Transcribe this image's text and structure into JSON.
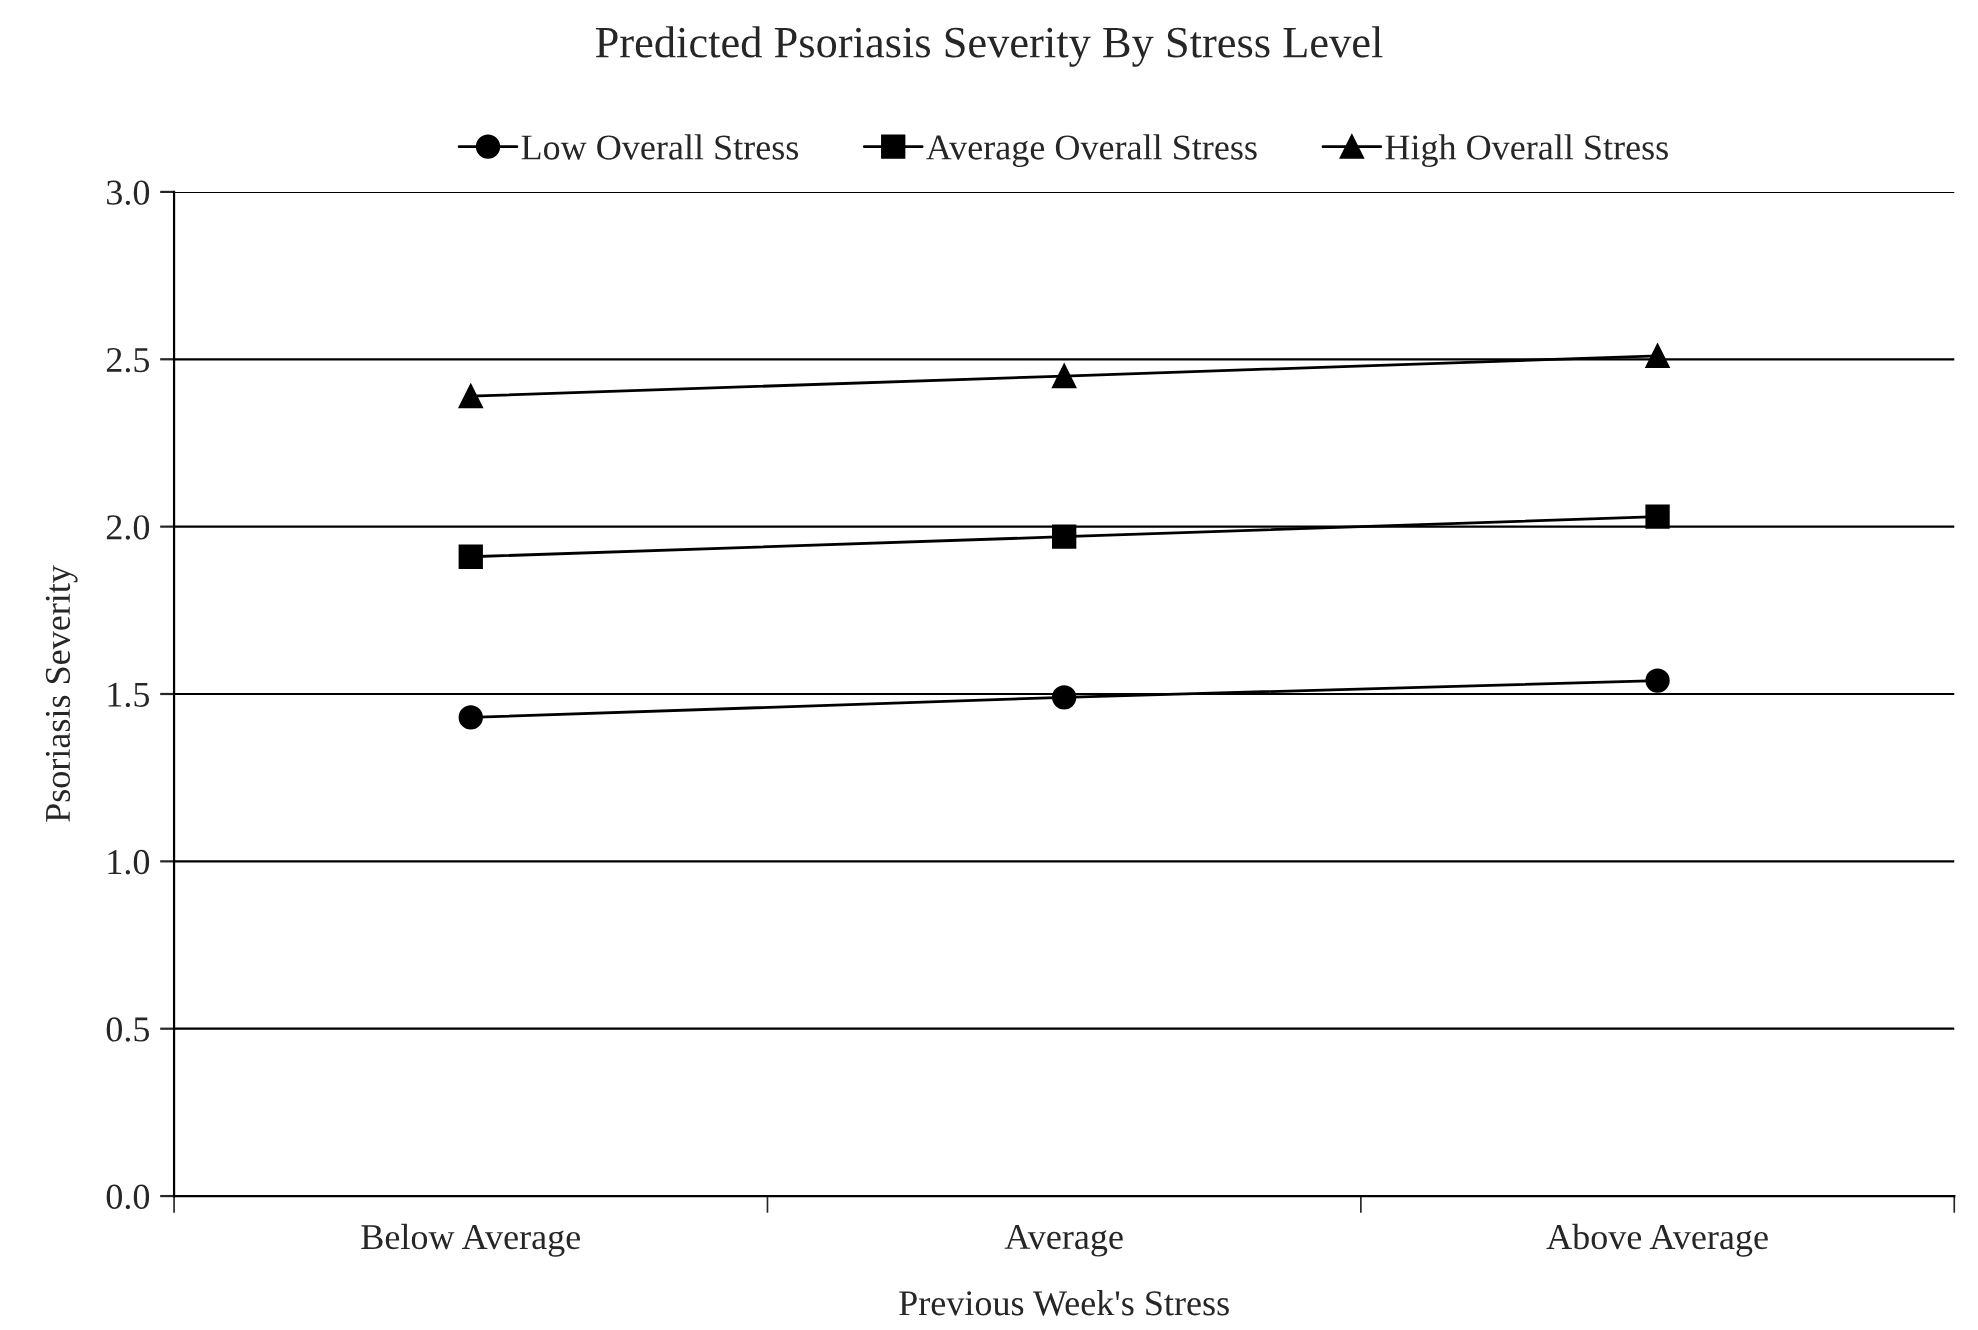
{
  "chart_data": {
    "type": "line",
    "title": "Predicted Psoriasis Severity By Stress Level",
    "xlabel": "Previous Week's Stress",
    "ylabel": "Psoriasis Severity",
    "categories": [
      "Below Average",
      "Average",
      "Above Average"
    ],
    "series": [
      {
        "name": "Low Overall Stress",
        "color": "#000000",
        "marker": "circle",
        "values": [
          1.43,
          1.49,
          1.54
        ]
      },
      {
        "name": "Average Overall Stress",
        "color": "#000000",
        "marker": "square",
        "values": [
          1.91,
          1.97,
          2.03
        ]
      },
      {
        "name": "High Overall Stress",
        "color": "#000000",
        "marker": "triangle",
        "values": [
          2.39,
          2.45,
          2.51
        ]
      }
    ],
    "ylim": [
      0,
      3.0
    ],
    "yticks": [
      {
        "value": 0,
        "label": "0.0"
      },
      {
        "value": 0.5,
        "label": "0.5"
      },
      {
        "value": 1.0,
        "label": "1.0"
      },
      {
        "value": 1.5,
        "label": "1.5"
      },
      {
        "value": 2.0,
        "label": "2.0"
      },
      {
        "value": 2.5,
        "label": "2.5"
      },
      {
        "value": 3.0,
        "label": "3.0"
      }
    ],
    "grid": "y",
    "legend": "top",
    "line_style": "solid"
  }
}
